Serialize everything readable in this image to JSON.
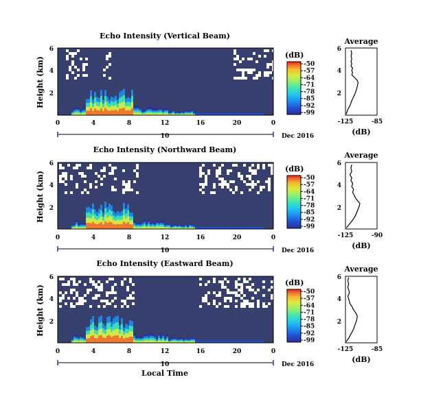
{
  "chart_data": [
    {
      "type": "heatmap",
      "title": "Echo Intensity (Vertical Beam)",
      "ylabel": "Height (km)",
      "yticks": [
        "6",
        "4",
        "2"
      ],
      "xticks": [
        "0",
        "4",
        "8",
        "12",
        "16",
        "20",
        "0"
      ],
      "date_axis": {
        "day": "10",
        "month_label": "Dec 2016"
      },
      "colorbar": {
        "unit": "(dB)",
        "ticks": [
          "-50",
          "-57",
          "-64",
          "-71",
          "-78",
          "-85",
          "-92",
          "-99"
        ]
      },
      "average": {
        "title": "Average",
        "xlabel": "(dB)",
        "xticks": [
          "-125",
          "-85"
        ],
        "yticks": [
          "6",
          "4",
          "2"
        ],
        "xlim": [
          -125,
          -85
        ],
        "ylim": [
          0,
          6
        ],
        "profile": [
          [
            -124,
            0.1
          ],
          [
            -122,
            0.5
          ],
          [
            -119,
            0.9
          ],
          [
            -117,
            1.3
          ],
          [
            -115,
            1.6
          ],
          [
            -113,
            1.9
          ],
          [
            -111,
            2.3
          ],
          [
            -110,
            2.6
          ],
          [
            -109,
            2.9
          ],
          [
            -110,
            3.1
          ],
          [
            -114,
            3.4
          ],
          [
            -117,
            3.6
          ],
          [
            -116,
            3.8
          ],
          [
            -117,
            4.0
          ],
          [
            -116,
            4.2
          ],
          [
            -118,
            4.4
          ],
          [
            -117,
            4.6
          ],
          [
            -118,
            4.8
          ],
          [
            -117,
            5.0
          ],
          [
            -118,
            5.3
          ],
          [
            -117,
            5.5
          ],
          [
            -118,
            5.8
          ]
        ]
      }
    },
    {
      "type": "heatmap",
      "title": "Echo Intensity (Northward Beam)",
      "ylabel": "Height (km)",
      "yticks": [
        "6",
        "4",
        "2"
      ],
      "xticks": [
        "0",
        "4",
        "8",
        "12",
        "16",
        "20",
        "0"
      ],
      "date_axis": {
        "day": "10",
        "month_label": "Dec 2016"
      },
      "colorbar": {
        "unit": "(dB)",
        "ticks": [
          "-50",
          "-57",
          "-64",
          "-71",
          "-78",
          "-85",
          "-92",
          "-99"
        ]
      },
      "average": {
        "title": "Average",
        "xlabel": "(dB)",
        "xticks": [
          "-125",
          "-90"
        ],
        "yticks": [
          "6",
          "4",
          "2"
        ],
        "xlim": [
          -125,
          -90
        ],
        "ylim": [
          0,
          6
        ],
        "profile": [
          [
            -124,
            0.1
          ],
          [
            -121,
            0.4
          ],
          [
            -117,
            0.8
          ],
          [
            -114,
            1.2
          ],
          [
            -112,
            1.6
          ],
          [
            -110,
            2.0
          ],
          [
            -109,
            2.3
          ],
          [
            -112,
            2.6
          ],
          [
            -114,
            2.8
          ],
          [
            -115,
            3.0
          ],
          [
            -117,
            3.3
          ],
          [
            -116,
            3.6
          ],
          [
            -118,
            3.8
          ],
          [
            -117,
            4.1
          ],
          [
            -119,
            4.4
          ],
          [
            -118,
            4.6
          ],
          [
            -120,
            4.9
          ],
          [
            -118,
            5.2
          ],
          [
            -119,
            5.5
          ],
          [
            -118,
            5.8
          ]
        ]
      }
    },
    {
      "type": "heatmap",
      "title": "Echo Intensity (Eastward Beam)",
      "ylabel": "Height (km)",
      "xlabel": "Local Time",
      "yticks": [
        "6",
        "4",
        "2"
      ],
      "xticks": [
        "0",
        "4",
        "8",
        "12",
        "16",
        "20",
        "0"
      ],
      "date_axis": {
        "day": "10",
        "month_label": "Dec 2016"
      },
      "colorbar": {
        "unit": "(dB)",
        "ticks": [
          "-50",
          "-57",
          "-64",
          "-71",
          "-78",
          "-85",
          "-92",
          "-99"
        ]
      },
      "average": {
        "title": "Average",
        "xlabel": "(dB)",
        "xticks": [
          "-125",
          "-85"
        ],
        "yticks": [
          "6",
          "4",
          "2"
        ],
        "xlim": [
          -125,
          -85
        ],
        "ylim": [
          0,
          6
        ],
        "profile": [
          [
            -124,
            0.1
          ],
          [
            -121,
            0.4
          ],
          [
            -118,
            0.8
          ],
          [
            -115,
            1.2
          ],
          [
            -113,
            1.6
          ],
          [
            -111,
            2.0
          ],
          [
            -110,
            2.4
          ],
          [
            -112,
            2.7
          ],
          [
            -115,
            3.0
          ],
          [
            -117,
            3.3
          ],
          [
            -119,
            3.5
          ],
          [
            -120,
            3.7
          ],
          [
            -121,
            4.0
          ],
          [
            -122,
            4.2
          ],
          [
            -120,
            4.5
          ],
          [
            -121,
            4.8
          ],
          [
            -122,
            5.0
          ],
          [
            -121,
            5.3
          ],
          [
            -122,
            5.6
          ],
          [
            -121,
            5.9
          ]
        ]
      }
    }
  ],
  "colors": {
    "background_fill": "#373f6e",
    "missing": "#ffffff",
    "colormap": [
      "#2b2f9a",
      "#1f4fd2",
      "#1c8ff0",
      "#21c8ec",
      "#3fe6b4",
      "#8ff06e",
      "#dcea3e",
      "#f6b630",
      "#f26b2a",
      "#e2261f"
    ]
  }
}
